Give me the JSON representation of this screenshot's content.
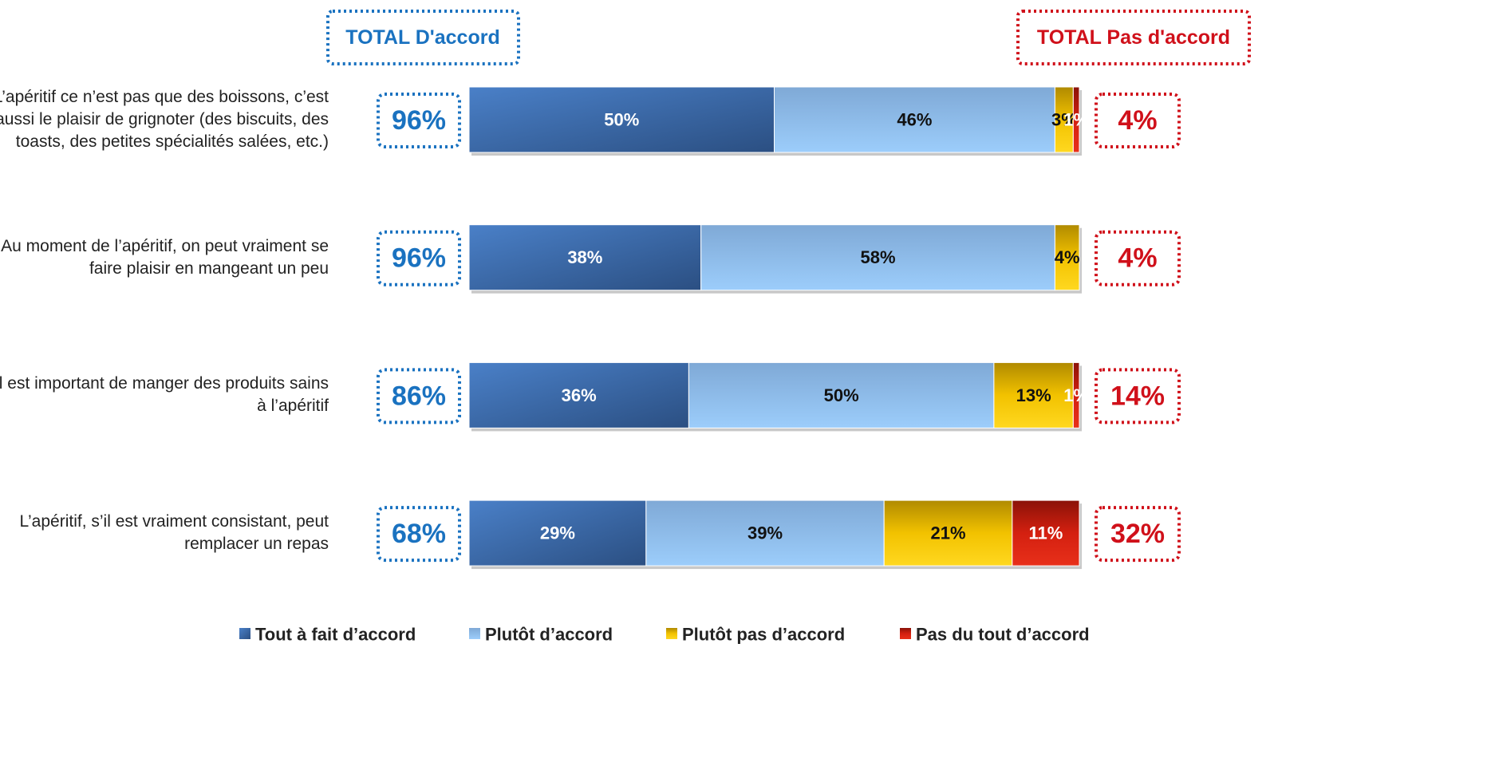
{
  "chart_data": {
    "type": "stacked_bar_horizontal",
    "header_left": "TOTAL D'accord",
    "header_right": "TOTAL Pas  d'accord",
    "categories": [
      "L’apéritif ce n’est pas que des boissons, c’est aussi le plaisir de grignoter (des biscuits, des toasts, des petites spécialités salées, etc.)",
      "Au moment de l’apéritif, on peut vraiment se faire plaisir en mangeant un peu",
      "Il est important de manger des produits sains à l’apéritif",
      "L’apéritif, s’il est vraiment consistant, peut remplacer un repas"
    ],
    "xlim": [
      0,
      100
    ],
    "series": [
      {
        "name": "Tout à fait d’accord",
        "color": "#3f72b5",
        "values": [
          50,
          38,
          36,
          29
        ],
        "value_labels": [
          "50%",
          "38%",
          "36%",
          "29%"
        ]
      },
      {
        "name": "Plutôt d’accord",
        "color": "#8cbdef",
        "values": [
          46,
          58,
          50,
          39
        ],
        "value_labels": [
          "46%",
          "58%",
          "50%",
          "39%"
        ]
      },
      {
        "name": "Plutôt pas d’accord",
        "color": "#f2c200",
        "values": [
          3,
          4,
          13,
          21
        ],
        "value_labels": [
          "3%",
          "4%",
          "13%",
          "21%"
        ]
      },
      {
        "name": "Pas du tout d’accord",
        "color": "#d42010",
        "values": [
          1,
          0,
          1,
          11
        ],
        "value_labels": [
          "1%",
          null,
          "1%",
          "11%"
        ]
      }
    ],
    "total_agree": {
      "values": [
        96,
        96,
        86,
        68
      ],
      "value_labels": [
        "96%",
        "96%",
        "86%",
        "68%"
      ]
    },
    "total_disagree": {
      "values": [
        4,
        4,
        14,
        32
      ],
      "value_labels": [
        "4%",
        "4%",
        "14%",
        "32%"
      ]
    }
  }
}
